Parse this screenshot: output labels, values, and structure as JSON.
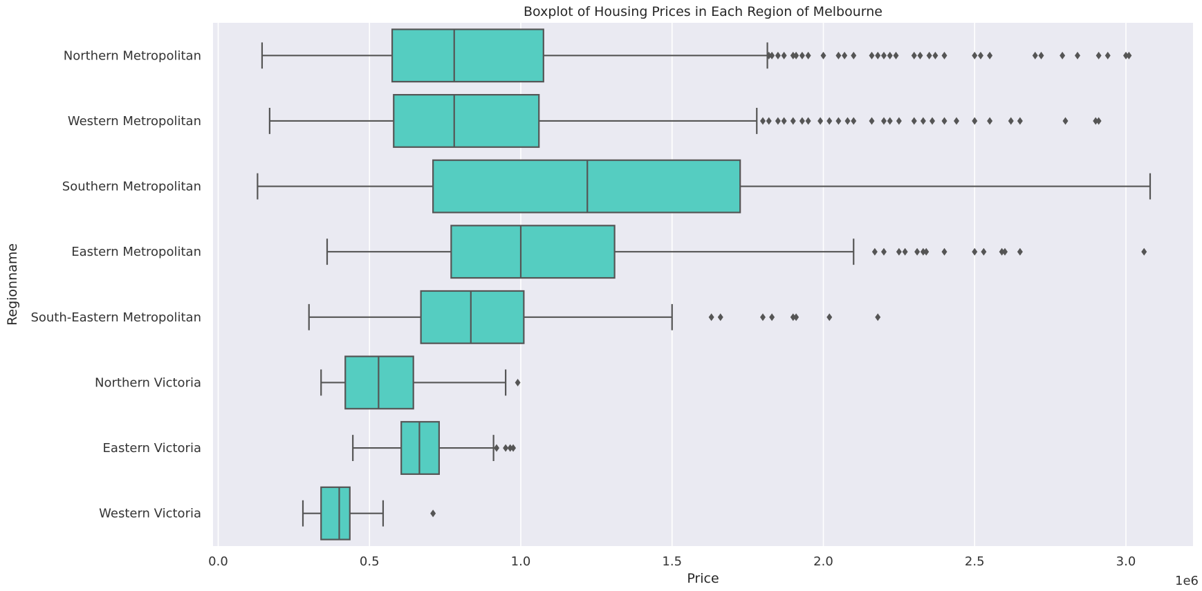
{
  "chart_data": {
    "type": "boxplot",
    "orientation": "horizontal",
    "title": "Boxplot of Housing Prices in Each Region of Melbourne",
    "xlabel": "Price",
    "ylabel": "Regionname",
    "x_offset_label": "1e6",
    "xlim": [
      -0.02,
      3.25
    ],
    "xticks": [
      0.0,
      0.5,
      1.0,
      1.5,
      2.0,
      2.5,
      3.0
    ],
    "xtick_labels": [
      "0.0",
      "0.5",
      "1.0",
      "1.5",
      "2.0",
      "2.5",
      "3.0"
    ],
    "grid": true,
    "box_color": "#55CDC1",
    "line_color": "#555555",
    "background_color": "#EAEAF2",
    "grid_color": "#ffffff",
    "series": [
      {
        "category": "Northern Metropolitan",
        "whisker_low": 0.145,
        "q1": 0.575,
        "median": 0.78,
        "q3": 1.075,
        "whisker_high": 1.815,
        "outliers": [
          1.82,
          1.83,
          1.85,
          1.87,
          1.9,
          1.91,
          1.93,
          1.95,
          2.0,
          2.05,
          2.07,
          2.1,
          2.16,
          2.18,
          2.2,
          2.22,
          2.24,
          2.3,
          2.32,
          2.35,
          2.37,
          2.4,
          2.5,
          2.52,
          2.55,
          2.7,
          2.72,
          2.79,
          2.84,
          2.91,
          2.94,
          3.0,
          3.01
        ]
      },
      {
        "category": "Western Metropolitan",
        "whisker_low": 0.17,
        "q1": 0.58,
        "median": 0.78,
        "q3": 1.06,
        "whisker_high": 1.78,
        "outliers": [
          1.8,
          1.82,
          1.85,
          1.87,
          1.9,
          1.93,
          1.95,
          1.99,
          2.02,
          2.05,
          2.08,
          2.1,
          2.16,
          2.2,
          2.22,
          2.25,
          2.3,
          2.33,
          2.36,
          2.4,
          2.44,
          2.5,
          2.55,
          2.62,
          2.65,
          2.8,
          2.9,
          2.91
        ]
      },
      {
        "category": "Southern Metropolitan",
        "whisker_low": 0.13,
        "q1": 0.71,
        "median": 1.22,
        "q3": 1.725,
        "whisker_high": 3.08,
        "outliers": []
      },
      {
        "category": "Eastern Metropolitan",
        "whisker_low": 0.36,
        "q1": 0.77,
        "median": 1.0,
        "q3": 1.31,
        "whisker_high": 2.1,
        "outliers": [
          2.17,
          2.2,
          2.25,
          2.27,
          2.31,
          2.33,
          2.34,
          2.4,
          2.5,
          2.53,
          2.59,
          2.6,
          2.65,
          3.06
        ]
      },
      {
        "category": "South-Eastern Metropolitan",
        "whisker_low": 0.3,
        "q1": 0.67,
        "median": 0.835,
        "q3": 1.01,
        "whisker_high": 1.5,
        "outliers": [
          1.63,
          1.66,
          1.8,
          1.83,
          1.9,
          1.91,
          2.02,
          2.18
        ]
      },
      {
        "category": "Northern Victoria",
        "whisker_low": 0.34,
        "q1": 0.42,
        "median": 0.53,
        "q3": 0.645,
        "whisker_high": 0.95,
        "outliers": [
          0.99
        ]
      },
      {
        "category": "Eastern Victoria",
        "whisker_low": 0.445,
        "q1": 0.605,
        "median": 0.665,
        "q3": 0.73,
        "whisker_high": 0.91,
        "outliers": [
          0.92,
          0.95,
          0.965,
          0.975
        ]
      },
      {
        "category": "Western Victoria",
        "whisker_low": 0.28,
        "q1": 0.34,
        "median": 0.4,
        "q3": 0.435,
        "whisker_high": 0.545,
        "outliers": [
          0.71
        ]
      }
    ]
  }
}
